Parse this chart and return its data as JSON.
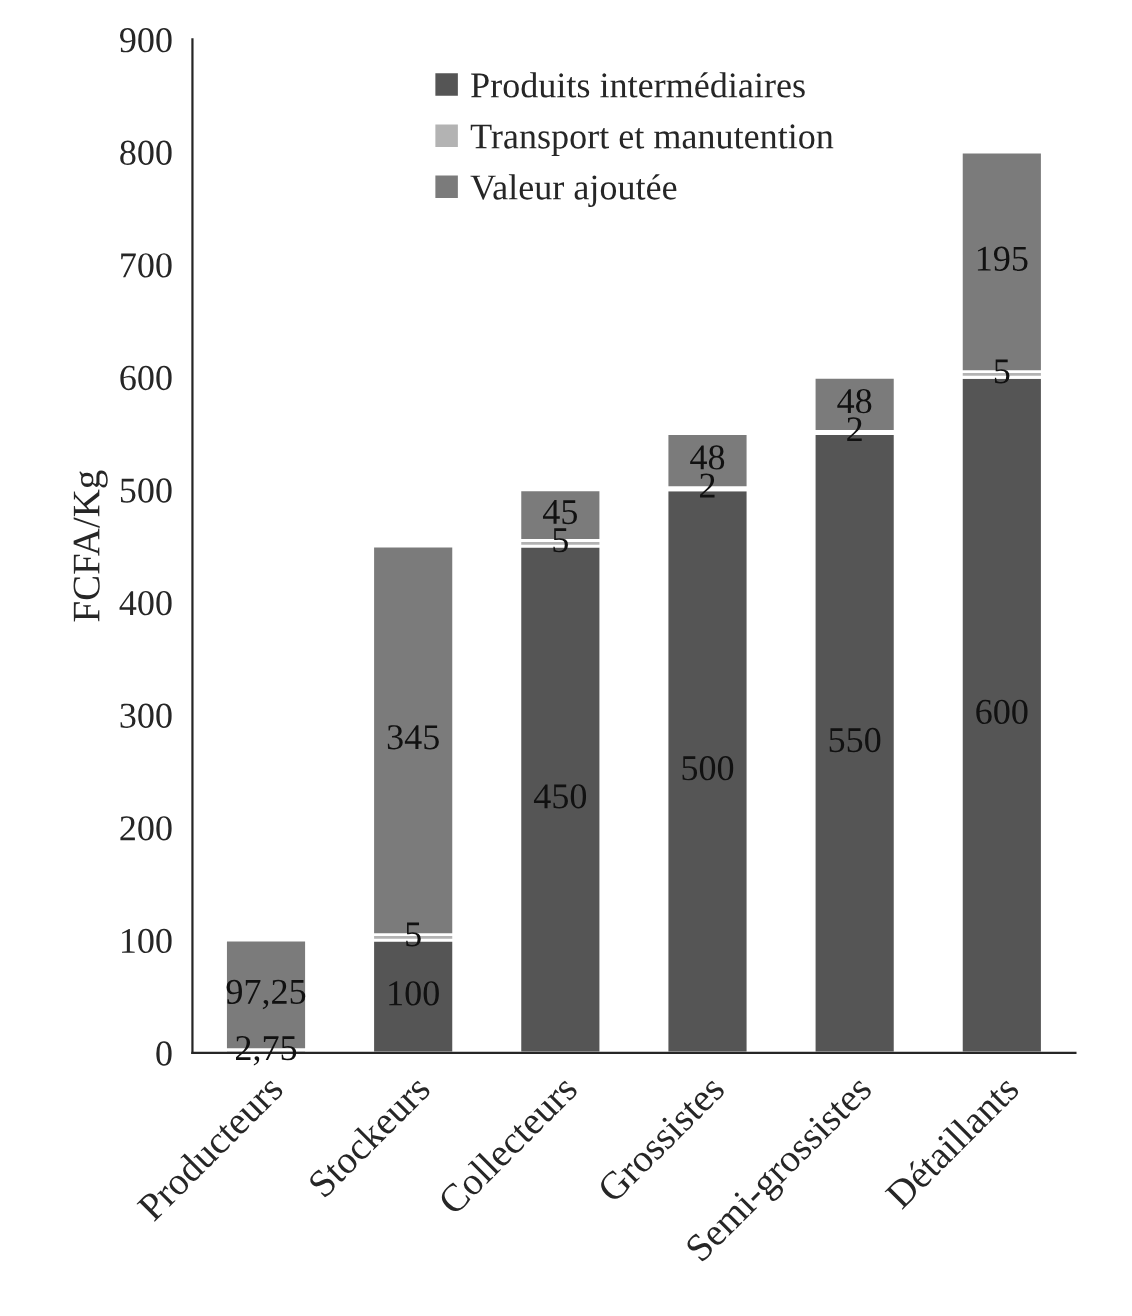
{
  "chart_data": {
    "type": "bar",
    "stacked": true,
    "ylabel": "FCFA/Kg",
    "categories": [
      "Producteurs",
      "Stockeurs",
      "Collecteurs",
      "Grossistes",
      "Semi-grossistes",
      "Détaillants"
    ],
    "series": [
      {
        "name": "Produits intermédiaires",
        "color": "#555555",
        "values": [
          0,
          100,
          450,
          500,
          550,
          600
        ],
        "value_labels": [
          null,
          "100",
          "450",
          "500",
          "550",
          "600"
        ]
      },
      {
        "name": "Transport et manutention",
        "color": "#b3b3b3",
        "values": [
          2.75,
          5,
          5,
          2,
          2,
          5
        ],
        "value_labels": [
          "2,75",
          "5",
          "5",
          "2",
          "2",
          "5"
        ]
      },
      {
        "name": "Valeur ajoutée",
        "color": "#7b7b7b",
        "values": [
          97.25,
          345,
          45,
          48,
          48,
          195
        ],
        "value_labels": [
          "97,25",
          "345",
          "45",
          "48",
          "48",
          "195"
        ]
      }
    ],
    "ylim": [
      0,
      900
    ],
    "yticks": [
      0,
      100,
      200,
      300,
      400,
      500,
      600,
      700,
      800,
      900
    ],
    "grid": false,
    "legend": "top"
  }
}
